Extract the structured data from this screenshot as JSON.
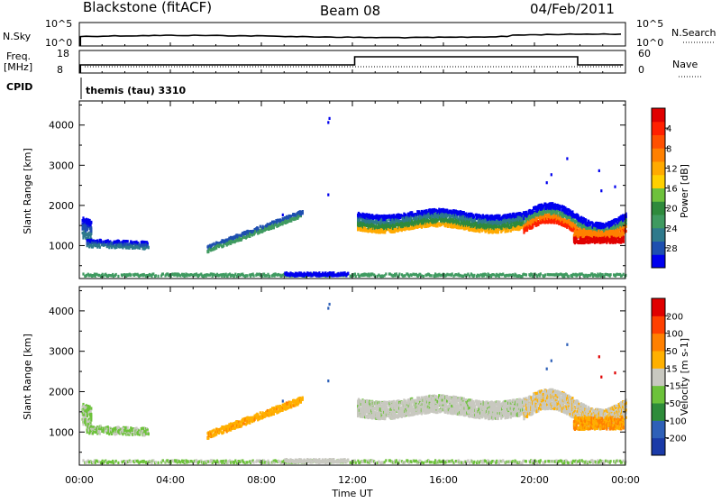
{
  "header": {
    "site": "Blackstone (fitACF)",
    "beam": "Beam 08",
    "date": "04/Feb/2011"
  },
  "status_panels": {
    "nsky_label": "N.Sky",
    "nsky_ticks": [
      "10^5",
      "10^0"
    ],
    "nsearch_label": "N.Search",
    "nsearch_ticks": [
      "10^5",
      "10^0"
    ],
    "freq_label": "Freq.",
    "freq_unit": "[MHz]",
    "freq_ticks": [
      "18",
      "8"
    ],
    "nave_label": "Nave",
    "nave_ticks": [
      "60",
      "0"
    ],
    "cpid_label": "CPID",
    "cpid_text": "themis (tau) 3310"
  },
  "chart_data": [
    {
      "type": "heatmap",
      "name": "power",
      "ylabel": "Slant Range [km]",
      "yticks": [
        1000,
        2000,
        3000,
        4000
      ],
      "ylim": [
        180,
        4600
      ],
      "xlabel": "",
      "xticks": [
        "00:00",
        "04:00",
        "08:00",
        "12:00",
        "16:00",
        "20:00",
        "00:00"
      ],
      "xlim_hours": [
        0,
        24
      ],
      "colorbar": {
        "label": "Power [dB]",
        "ticks": [
          "4",
          "8",
          "12",
          "16",
          "20",
          "24",
          "28"
        ],
        "colors": [
          "#0000ee",
          "#1e4fb0",
          "#2f7a8c",
          "#3f9a60",
          "#2e8a3c",
          "#6ec13c",
          "#ffd000",
          "#ffaa00",
          "#ff8000",
          "#ff5000",
          "#ff2000",
          "#e00000"
        ]
      }
    },
    {
      "type": "heatmap",
      "name": "velocity",
      "ylabel": "Slant Range [km]",
      "yticks": [
        1000,
        2000,
        3000,
        4000
      ],
      "ylim": [
        180,
        4600
      ],
      "xlabel": "Time UT",
      "xticks": [
        "00:00",
        "04:00",
        "08:00",
        "12:00",
        "16:00",
        "20:00",
        "00:00"
      ],
      "xlim_hours": [
        0,
        24
      ],
      "colorbar": {
        "label": "Velocity [m s-1]",
        "ticks": [
          "200",
          "100",
          "50",
          "15",
          "-15",
          "-50",
          "-100",
          "-200"
        ],
        "colors": [
          "#1a3aa8",
          "#2e60b8",
          "#2e8c3a",
          "#6cc23a",
          "#c8c8c0",
          "#ffb000",
          "#ff8000",
          "#ff4000",
          "#e00000"
        ]
      }
    }
  ]
}
